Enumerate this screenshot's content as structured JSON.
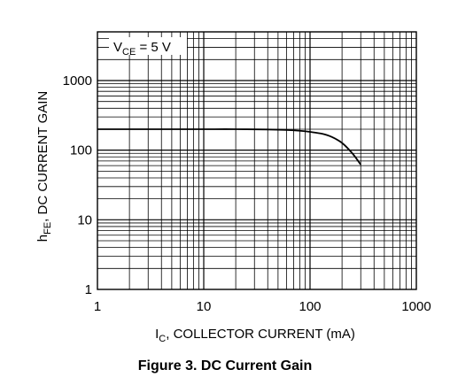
{
  "caption": "Figure 3. DC Current Gain",
  "chart_data": {
    "type": "line",
    "title": "",
    "xlabel": {
      "main": "I",
      "sub": "C",
      "rest": ", COLLECTOR CURRENT (mA)"
    },
    "ylabel": {
      "main": "h",
      "sub": "FE",
      "rest": ", DC CURRENT GAIN"
    },
    "x_scale": "log",
    "y_scale": "log",
    "xlim": [
      1,
      1000
    ],
    "ylim": [
      1,
      5000
    ],
    "x_ticks": [
      {
        "value": 1,
        "label": "1"
      },
      {
        "value": 10,
        "label": "10"
      },
      {
        "value": 100,
        "label": "100"
      },
      {
        "value": 1000,
        "label": "1000"
      }
    ],
    "y_ticks": [
      {
        "value": 1,
        "label": "1"
      },
      {
        "value": 10,
        "label": "10"
      },
      {
        "value": 100,
        "label": "100"
      },
      {
        "value": 1000,
        "label": "1000"
      }
    ],
    "grid": true,
    "annotation": {
      "main": "V",
      "sub": "CE",
      "rest": " = 5 V"
    },
    "series": [
      {
        "x": [
          1,
          2,
          5,
          10,
          20,
          40,
          60,
          80,
          100,
          130,
          160,
          200,
          250,
          300
        ],
        "y": [
          200,
          200,
          200,
          200,
          200,
          198,
          195,
          190,
          183,
          172,
          155,
          127,
          90,
          62
        ]
      }
    ]
  }
}
